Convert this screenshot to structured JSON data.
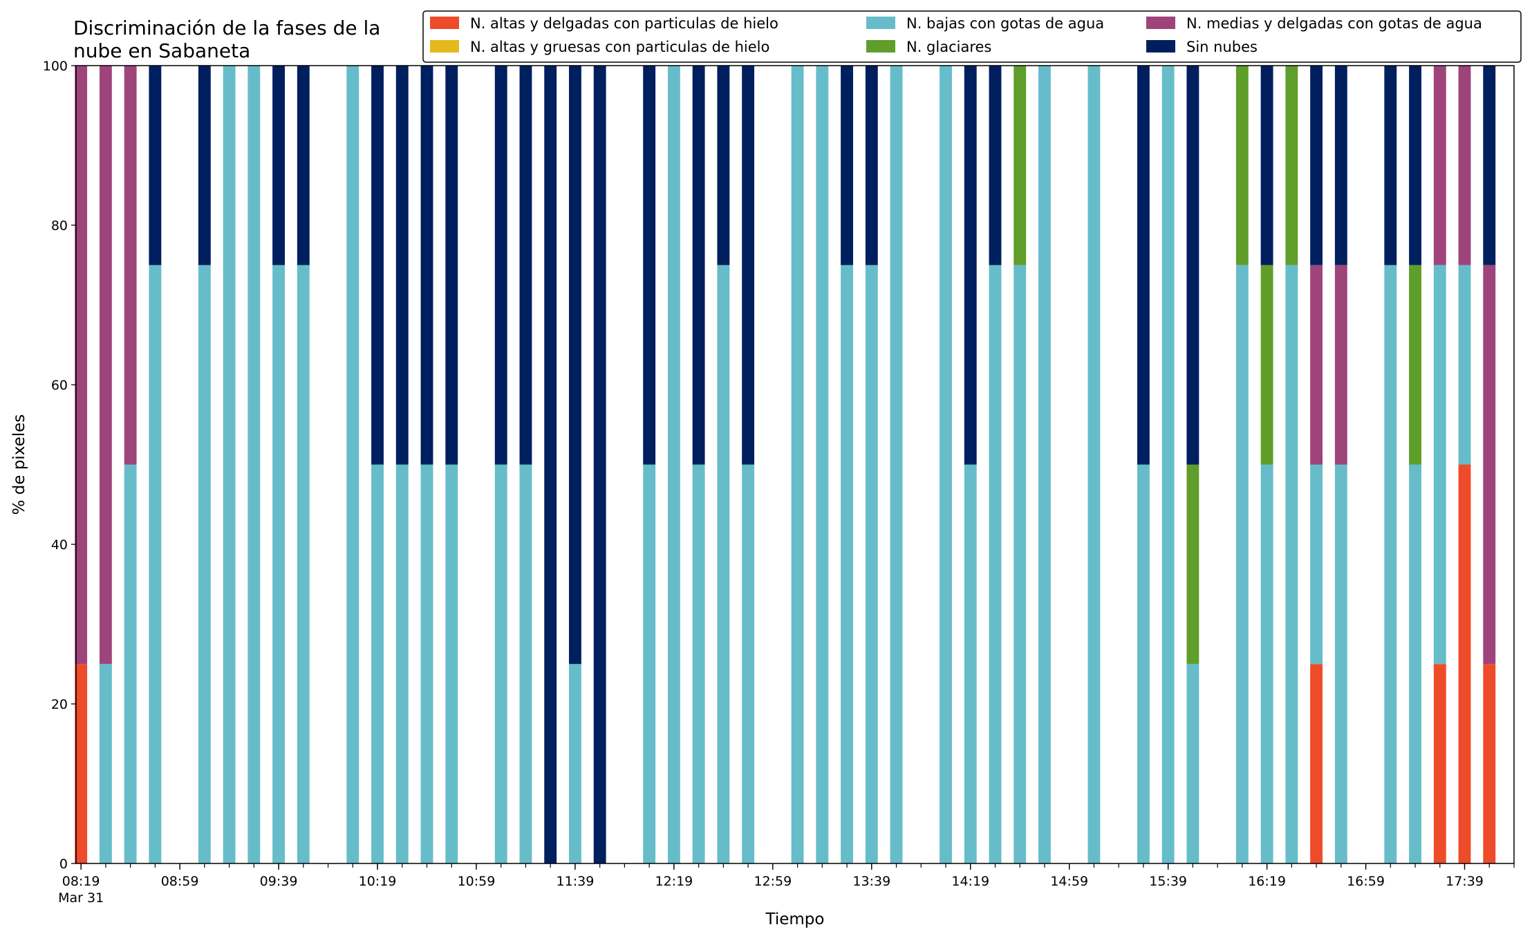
{
  "chart_data": {
    "type": "bar",
    "stacked": true,
    "title": "Discriminación de la fases de la\nnube en Sabaneta",
    "xlabel": "Tiempo",
    "ylabel": "% de pixeles",
    "ylim": [
      0,
      100
    ],
    "yticks": [
      0,
      20,
      40,
      60,
      80,
      100
    ],
    "grid": false,
    "legend_position": "top-right",
    "x_start_label": "08:19",
    "x_tick_step_minutes": 10,
    "x_label_every_minutes": 40,
    "x_range_minutes": [
      -2,
      580
    ],
    "x_tick_labels": [
      "08:19",
      "08:59",
      "09:39",
      "10:19",
      "10:59",
      "11:39",
      "12:19",
      "12:59",
      "13:39",
      "14:19",
      "14:59",
      "15:39",
      "16:19",
      "16:59",
      "17:39"
    ],
    "x_date_label": "Mar 31",
    "x": [
      "08:19",
      "08:29",
      "08:39",
      "08:49",
      "09:09",
      "09:19",
      "09:29",
      "09:39",
      "09:49",
      "10:09",
      "10:19",
      "10:29",
      "10:39",
      "10:49",
      "11:09",
      "11:19",
      "11:29",
      "11:39",
      "11:49",
      "12:09",
      "12:19",
      "12:29",
      "12:39",
      "12:49",
      "13:09",
      "13:19",
      "13:29",
      "13:39",
      "13:49",
      "14:09",
      "14:19",
      "14:29",
      "14:39",
      "14:49",
      "15:09",
      "15:29",
      "15:39",
      "15:49",
      "16:09",
      "16:19",
      "16:29",
      "16:39",
      "16:49",
      "17:09",
      "17:19",
      "17:29",
      "17:39",
      "17:49"
    ],
    "series": [
      {
        "name": "N. altas y delgadas con particulas de hielo",
        "color": "#ee4b2b",
        "values": [
          25,
          0,
          0,
          0,
          0,
          0,
          0,
          0,
          0,
          0,
          0,
          0,
          0,
          0,
          0,
          0,
          0,
          0,
          0,
          0,
          0,
          0,
          0,
          0,
          0,
          0,
          0,
          0,
          0,
          0,
          0,
          0,
          0,
          0,
          0,
          0,
          0,
          0,
          0,
          0,
          0,
          25,
          0,
          0,
          0,
          25,
          50,
          25
        ]
      },
      {
        "name": "N. altas y gruesas con particulas de hielo",
        "color": "#e5b81c",
        "values": [
          0,
          0,
          0,
          0,
          0,
          0,
          0,
          0,
          0,
          0,
          0,
          0,
          0,
          0,
          0,
          0,
          0,
          0,
          0,
          0,
          0,
          0,
          0,
          0,
          0,
          0,
          0,
          0,
          0,
          0,
          0,
          0,
          0,
          0,
          0,
          0,
          0,
          0,
          0,
          0,
          0,
          0,
          0,
          0,
          0,
          0,
          0,
          0
        ]
      },
      {
        "name": "N. bajas con gotas de agua",
        "color": "#66bdc9",
        "values": [
          0,
          25,
          50,
          75,
          75,
          100,
          100,
          75,
          75,
          100,
          50,
          50,
          50,
          50,
          50,
          50,
          0,
          25,
          0,
          50,
          100,
          50,
          75,
          50,
          100,
          100,
          75,
          75,
          100,
          100,
          50,
          75,
          75,
          100,
          100,
          50,
          100,
          25,
          75,
          50,
          75,
          25,
          50,
          75,
          50,
          50,
          25,
          0
        ]
      },
      {
        "name": "N. glaciares",
        "color": "#5f9e2a",
        "values": [
          0,
          0,
          0,
          0,
          0,
          0,
          0,
          0,
          0,
          0,
          0,
          0,
          0,
          0,
          0,
          0,
          0,
          0,
          0,
          0,
          0,
          0,
          0,
          0,
          0,
          0,
          0,
          0,
          0,
          0,
          0,
          0,
          25,
          0,
          0,
          0,
          0,
          25,
          25,
          25,
          25,
          0,
          0,
          0,
          25,
          0,
          0,
          0
        ]
      },
      {
        "name": "N. medias y delgadas con gotas de agua",
        "color": "#9e447b",
        "values": [
          75,
          75,
          50,
          0,
          0,
          0,
          0,
          0,
          0,
          0,
          0,
          0,
          0,
          0,
          0,
          0,
          0,
          0,
          0,
          0,
          0,
          0,
          0,
          0,
          0,
          0,
          0,
          0,
          0,
          0,
          0,
          0,
          0,
          0,
          0,
          0,
          0,
          0,
          0,
          0,
          0,
          25,
          25,
          0,
          0,
          25,
          25,
          50
        ]
      },
      {
        "name": "Sin nubes",
        "color": "#001f5f",
        "values": [
          0,
          0,
          0,
          25,
          25,
          0,
          0,
          25,
          25,
          0,
          50,
          50,
          50,
          50,
          50,
          50,
          100,
          75,
          100,
          50,
          0,
          50,
          25,
          50,
          0,
          0,
          25,
          25,
          0,
          0,
          50,
          25,
          0,
          0,
          0,
          50,
          0,
          50,
          0,
          25,
          0,
          25,
          25,
          25,
          25,
          0,
          0,
          25
        ]
      }
    ]
  }
}
